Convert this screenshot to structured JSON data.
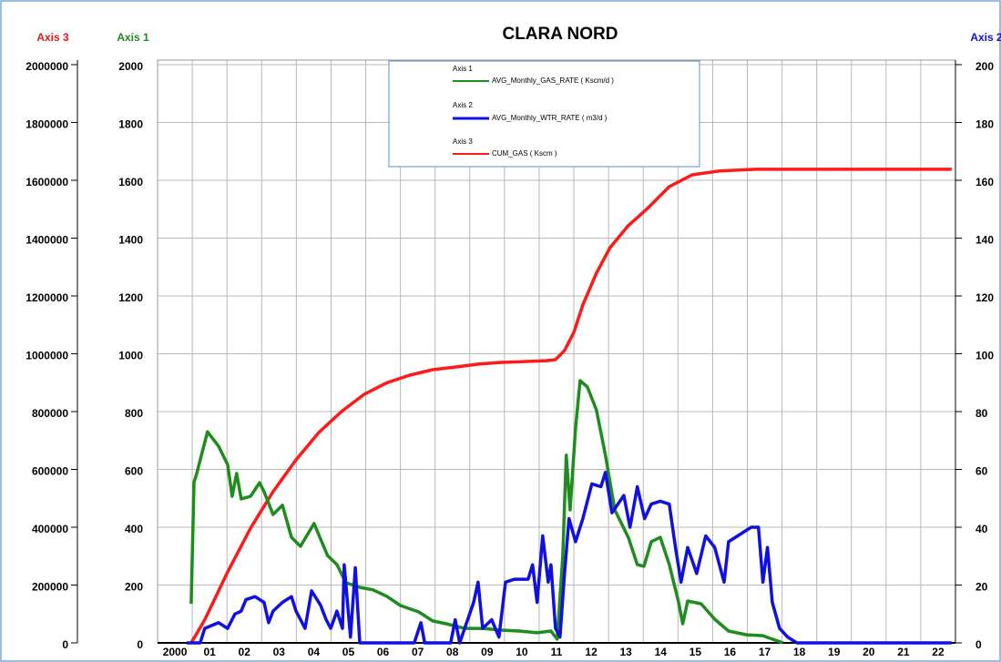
{
  "chart_data": {
    "type": "line",
    "title": "CLARA NORD",
    "y_label": "Axis 1",
    "y2_label": "Axis 2",
    "y3_label": "Axis 3",
    "xlim": [
      2000,
      2023
    ],
    "xticks": [
      2000,
      {
        "value": 2001,
        "label": "01"
      },
      {
        "value": 2002,
        "label": "02"
      },
      {
        "value": 2003,
        "label": "03"
      },
      {
        "value": 2004,
        "label": "04"
      },
      {
        "value": 2005,
        "label": "05"
      },
      {
        "value": 2006,
        "label": "06"
      },
      {
        "value": 2007,
        "label": "07"
      },
      {
        "value": 2008,
        "label": "08"
      },
      {
        "value": 2009,
        "label": "09"
      },
      {
        "value": 2010,
        "label": "10"
      },
      {
        "value": 2011,
        "label": "11"
      },
      {
        "value": 2012,
        "label": "12"
      },
      {
        "value": 2013,
        "label": "13"
      },
      {
        "value": 2014,
        "label": "14"
      },
      {
        "value": 2015,
        "label": "15"
      },
      {
        "value": 2016,
        "label": "16"
      },
      {
        "value": 2017,
        "label": "17"
      },
      {
        "value": 2018,
        "label": "18"
      },
      {
        "value": 2019,
        "label": "19"
      },
      {
        "value": 2020,
        "label": "20"
      },
      {
        "value": 2021,
        "label": "21"
      },
      {
        "value": 2022,
        "label": "22"
      }
    ],
    "ylim": [
      0,
      2000
    ],
    "yticks": [
      0,
      200,
      400,
      600,
      800,
      1000,
      1200,
      1400,
      1600,
      1800,
      2000
    ],
    "y2lim": [
      0,
      200
    ],
    "y2ticks": [
      0,
      20,
      40,
      60,
      80,
      100,
      120,
      140,
      160,
      180,
      200
    ],
    "y3lim": [
      0,
      2000000
    ],
    "y3ticks": [
      0,
      200000,
      400000,
      600000,
      800000,
      1000000,
      1200000,
      1400000,
      1600000,
      1800000,
      2000000
    ],
    "grid": true,
    "series": [
      {
        "name": "AVG_Monthly_GAS_RATE ( Kscm/d )",
        "color": "#1e8c1e",
        "axis": "y",
        "x": [
          2000.97,
          2001.05,
          2001.13,
          2001.44,
          2001.76,
          2002.02,
          2002.15,
          2002.28,
          2002.41,
          2002.68,
          2002.94,
          2003.07,
          2003.33,
          2003.6,
          2003.86,
          2004.12,
          2004.51,
          2004.9,
          2005.17,
          2005.43,
          2005.83,
          2006.22,
          2006.61,
          2007.0,
          2007.53,
          2007.93,
          2008.32,
          2008.85,
          2009.37,
          2009.9,
          2010.42,
          2010.94,
          2011.34,
          2011.52,
          2011.68,
          2011.78,
          2011.89,
          2012.05,
          2012.18,
          2012.39,
          2012.65,
          2012.91,
          2013.18,
          2013.57,
          2013.83,
          2014.02,
          2014.23,
          2014.49,
          2014.75,
          2015.01,
          2015.14,
          2015.28,
          2015.67,
          2016.06,
          2016.46,
          2016.98,
          2017.45,
          2017.72,
          2018.03
        ],
        "values": [
          135,
          555,
          586,
          730,
          680,
          617,
          507,
          586,
          498,
          507,
          554,
          523,
          444,
          476,
          365,
          334,
          413,
          302,
          271,
          208,
          192,
          183,
          161,
          129,
          107,
          76,
          66,
          50,
          50,
          44,
          41,
          35,
          41,
          13,
          302,
          649,
          460,
          743,
          907,
          885,
          806,
          649,
          460,
          365,
          271,
          265,
          350,
          365,
          271,
          145,
          66,
          145,
          135,
          82,
          41,
          28,
          25,
          13,
          0
        ]
      },
      {
        "name": "AVG_Monthly_WTR_RATE ( m3/d )",
        "color": "#1010e0",
        "axis": "y2",
        "x": [
          2000.84,
          2001.23,
          2001.36,
          2001.76,
          2002.02,
          2002.23,
          2002.41,
          2002.55,
          2002.81,
          2003.07,
          2003.2,
          2003.33,
          2003.6,
          2003.86,
          2003.99,
          2004.25,
          2004.44,
          2004.7,
          2004.86,
          2004.99,
          2005.17,
          2005.33,
          2005.38,
          2005.56,
          2005.7,
          2005.83,
          2007.4,
          2007.59,
          2007.7,
          2008.45,
          2008.58,
          2008.71,
          2009.11,
          2009.24,
          2009.37,
          2009.63,
          2009.84,
          2010.03,
          2010.29,
          2010.68,
          2010.81,
          2010.94,
          2011.1,
          2011.26,
          2011.34,
          2011.47,
          2011.6,
          2011.73,
          2011.86,
          2012.05,
          2012.26,
          2012.52,
          2012.78,
          2012.91,
          2013.1,
          2013.44,
          2013.62,
          2013.83,
          2014.04,
          2014.23,
          2014.49,
          2014.75,
          2014.93,
          2015.09,
          2015.28,
          2015.54,
          2015.8,
          2016.06,
          2016.33,
          2016.46,
          2016.85,
          2017.11,
          2017.32,
          2017.45,
          2017.58,
          2017.72,
          2017.93,
          2018.16,
          2018.43,
          2022.89
        ],
        "values": [
          0,
          0,
          5,
          7,
          5,
          10,
          11,
          15,
          16,
          14,
          7,
          11,
          14,
          16,
          11,
          5,
          18,
          13,
          8,
          5,
          11,
          5,
          27,
          2,
          26,
          0,
          0,
          7,
          0,
          0,
          8,
          0,
          14,
          21,
          5,
          8,
          2,
          21,
          22,
          22,
          27,
          14,
          37,
          21,
          27,
          5,
          2,
          24,
          43,
          35,
          43,
          55,
          54,
          59,
          45,
          51,
          40,
          54,
          43,
          48,
          49,
          48,
          33,
          21,
          33,
          24,
          37,
          33,
          21,
          35,
          38,
          40,
          40,
          21,
          33,
          14,
          5,
          2,
          0,
          0
        ]
      },
      {
        "name": "CUM_GAS ( Kscm )",
        "color": "#ff1a1a",
        "axis": "y3",
        "x": [
          2000.97,
          2001.36,
          2002.02,
          2002.68,
          2003.33,
          2003.99,
          2004.65,
          2005.3,
          2005.96,
          2006.61,
          2007.27,
          2007.93,
          2008.58,
          2009.24,
          2009.9,
          2010.55,
          2011.21,
          2011.47,
          2011.73,
          2012.0,
          2012.26,
          2012.65,
          2013.04,
          2013.57,
          2014.09,
          2014.75,
          2015.41,
          2016.19,
          2017.24,
          2018.29,
          2022.89
        ],
        "values": [
          0,
          80000,
          245000,
          397000,
          523000,
          633000,
          728000,
          800000,
          860000,
          900000,
          926000,
          945000,
          954000,
          964000,
          970000,
          973000,
          976000,
          980000,
          1011000,
          1074000,
          1169000,
          1279000,
          1367000,
          1443000,
          1499000,
          1578000,
          1619000,
          1632000,
          1638000,
          1638000,
          1638000
        ]
      }
    ]
  }
}
